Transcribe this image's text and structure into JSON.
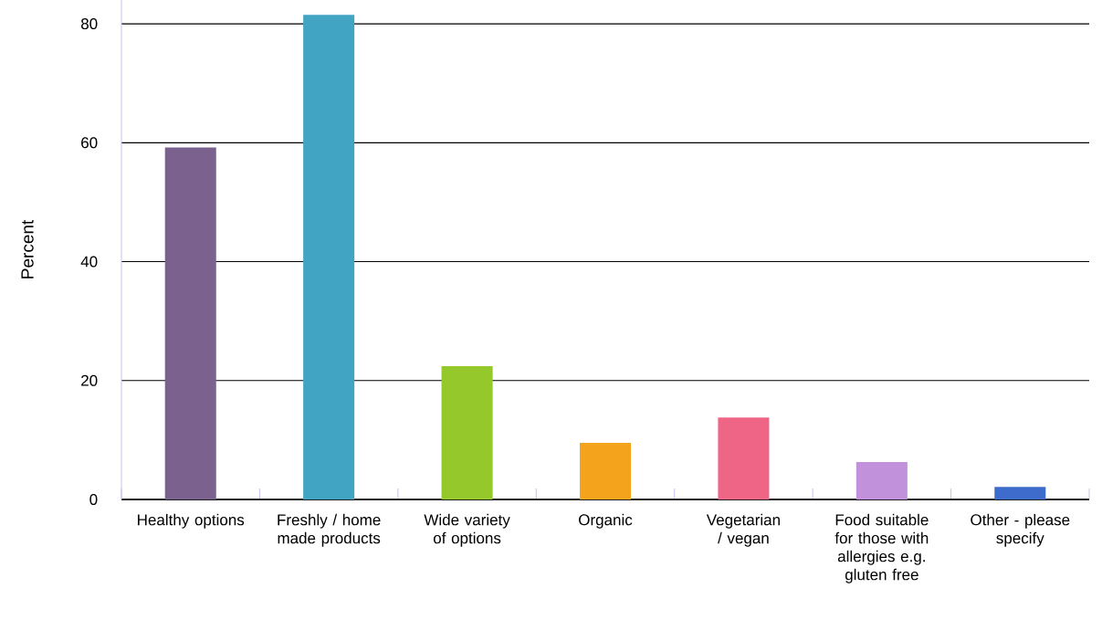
{
  "chart_data": {
    "type": "bar",
    "ylabel": "Percent",
    "categories": [
      "Healthy options",
      "Freshly / home made products",
      "Wide variety of options",
      "Organic",
      "Vegetarian / vegan",
      "Food suitable for those with allergies e.g. gluten free",
      "Other - please specify"
    ],
    "values": [
      59.2,
      81.5,
      22.4,
      9.5,
      13.8,
      6.3,
      2.1
    ],
    "colors": [
      "#7b618e",
      "#40a4c2",
      "#95c82a",
      "#f4a31d",
      "#ef6585",
      "#c191dc",
      "#3e6ccc"
    ],
    "ylim": [
      0,
      84
    ],
    "yticks": [
      0,
      20,
      40,
      60,
      80
    ],
    "grid": "y"
  }
}
